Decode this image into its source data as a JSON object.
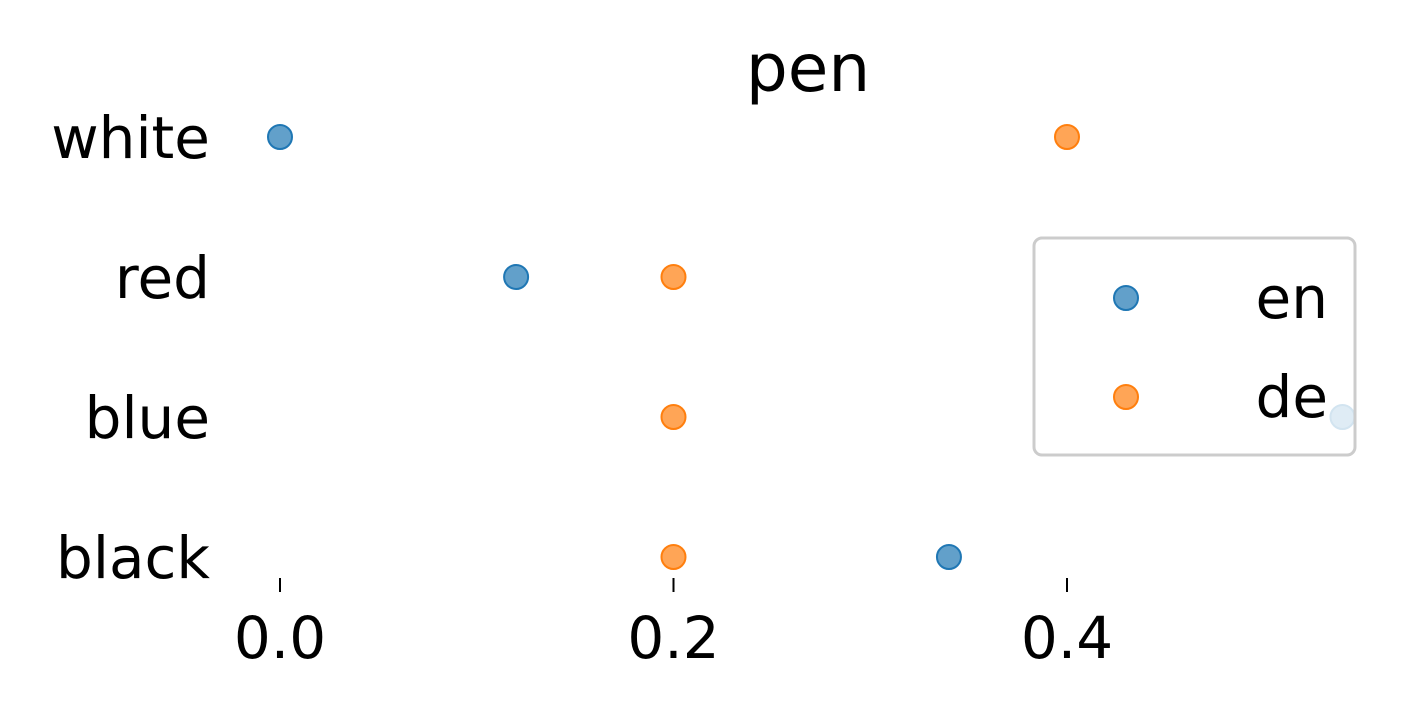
{
  "chart_data": {
    "type": "scatter",
    "title": "pen",
    "xlabel": "",
    "ylabel": "",
    "categories": [
      "white",
      "red",
      "blue",
      "black"
    ],
    "xlim": [
      0.0,
      0.4
    ],
    "xticks": [
      "0.0",
      "0.2",
      "0.4"
    ],
    "grid": false,
    "legend_position": "right",
    "series": [
      {
        "name": "en",
        "color": "#1f77b4",
        "values": [
          0.0,
          0.12,
          0.54,
          0.34
        ]
      },
      {
        "name": "de",
        "color": "#ff7f0e",
        "values": [
          0.4,
          0.2,
          0.2,
          0.2
        ]
      }
    ]
  }
}
